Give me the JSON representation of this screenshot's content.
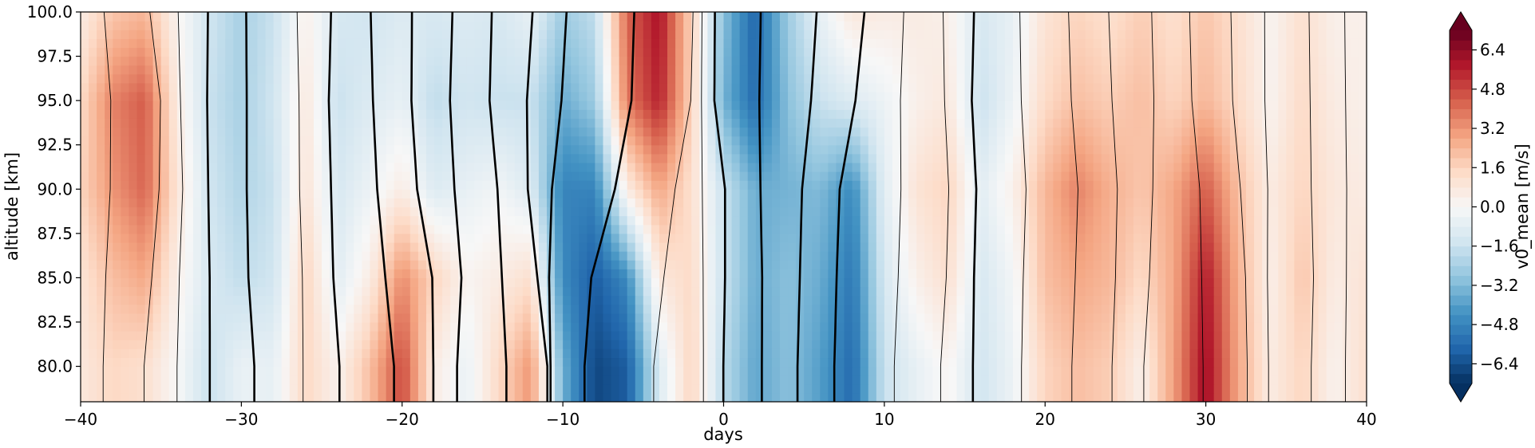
{
  "chart_data": {
    "type": "heatmap",
    "plot_kind": "filled contour with overlaid line contours",
    "xlabel": "days",
    "ylabel": "altitude [km]",
    "xlim": [
      -40,
      40
    ],
    "ylim": [
      78,
      100
    ],
    "x_ticks": [
      -40,
      -30,
      -20,
      -10,
      0,
      10,
      20,
      30,
      40
    ],
    "x_tick_labels": [
      "−40",
      "−30",
      "−20",
      "−10",
      "0",
      "10",
      "20",
      "30",
      "40"
    ],
    "y_ticks": [
      80.0,
      82.5,
      85.0,
      87.5,
      90.0,
      92.5,
      95.0,
      97.5,
      100.0
    ],
    "y_tick_labels": [
      "80.0",
      "82.5",
      "85.0",
      "87.5",
      "90.0",
      "92.5",
      "95.0",
      "97.5",
      "100.0"
    ],
    "colormap": "RdBu_r",
    "colorbar": {
      "label": "v0_mean [m/s]",
      "range": [
        -7.2,
        7.2
      ],
      "extend": "both",
      "ticks": [
        -6.4,
        -4.8,
        -3.2,
        -1.6,
        0.0,
        1.6,
        3.2,
        4.8,
        6.4
      ],
      "tick_labels": [
        "−6.4",
        "−4.8",
        "−3.2",
        "−1.6",
        "0.0",
        "1.6",
        "3.2",
        "4.8",
        "6.4"
      ],
      "color_stops": [
        "#053061",
        "#2166ac",
        "#4393c3",
        "#92c5de",
        "#d1e5f0",
        "#f7f7f7",
        "#fddbc7",
        "#f4a582",
        "#d6604d",
        "#b2182b",
        "#67001f"
      ]
    },
    "days": [
      -40,
      -38,
      -36,
      -34,
      -32,
      -30,
      -28,
      -26,
      -24,
      -22,
      -20,
      -18,
      -16,
      -14,
      -12,
      -10,
      -8,
      -6,
      -4,
      -2,
      0,
      2,
      4,
      6,
      8,
      10,
      12,
      14,
      16,
      18,
      20,
      22,
      24,
      26,
      28,
      30,
      32,
      34,
      36,
      38,
      40
    ],
    "v0_mean_profile_bands": [
      {
        "altitude_km": 80,
        "values": [
          0.8,
          1.5,
          1.2,
          0.0,
          -1.6,
          -0.5,
          -0.6,
          1.5,
          0.3,
          2.2,
          4.8,
          0.6,
          -0.5,
          1.4,
          3.2,
          -3.5,
          -6.6,
          -6.0,
          -1.0,
          1.6,
          -2.0,
          -3.8,
          -3.0,
          -4.0,
          -5.6,
          -1.6,
          -0.6,
          0.2,
          -1.4,
          -0.4,
          1.6,
          2.2,
          1.8,
          0.4,
          3.0,
          6.2,
          2.8,
          0.6,
          1.6,
          0.3,
          1.2
        ]
      },
      {
        "altitude_km": 85,
        "values": [
          1.0,
          2.2,
          2.8,
          0.4,
          -1.2,
          -1.8,
          -1.4,
          1.6,
          -0.8,
          0.6,
          3.4,
          1.6,
          0.2,
          0.6,
          1.2,
          -4.6,
          -6.0,
          -4.6,
          0.8,
          1.4,
          -1.6,
          -3.6,
          -3.0,
          -3.6,
          -5.2,
          -1.2,
          0.4,
          1.2,
          -1.2,
          -0.2,
          2.2,
          2.8,
          2.4,
          1.4,
          2.8,
          5.8,
          2.6,
          0.4,
          2.0,
          0.6,
          1.0
        ]
      },
      {
        "altitude_km": 90,
        "values": [
          1.6,
          3.2,
          4.2,
          1.0,
          -1.4,
          -2.2,
          -1.6,
          1.0,
          -1.2,
          -0.4,
          0.6,
          -1.0,
          -0.6,
          -0.2,
          -1.0,
          -4.8,
          -4.8,
          0.6,
          2.8,
          1.2,
          -1.6,
          -3.6,
          -3.4,
          -3.2,
          -4.6,
          -0.8,
          1.0,
          1.6,
          -0.8,
          0.4,
          2.4,
          3.6,
          2.6,
          2.0,
          2.8,
          4.4,
          2.2,
          0.6,
          1.6,
          0.8,
          0.6
        ]
      },
      {
        "altitude_km": 95,
        "values": [
          1.4,
          3.6,
          4.4,
          0.6,
          -1.6,
          -2.4,
          -1.4,
          0.8,
          -1.6,
          -1.0,
          -0.6,
          -1.8,
          -1.4,
          -1.6,
          -1.6,
          -3.6,
          -2.6,
          3.8,
          5.6,
          1.6,
          -3.4,
          -5.6,
          -3.0,
          -1.6,
          -1.0,
          -0.4,
          0.4,
          0.8,
          -1.6,
          -0.4,
          1.4,
          2.2,
          1.8,
          2.2,
          1.6,
          2.4,
          1.4,
          0.2,
          1.4,
          0.6,
          0.4
        ]
      },
      {
        "altitude_km": 100,
        "values": [
          0.6,
          2.0,
          2.4,
          0.2,
          -1.4,
          -2.4,
          -1.6,
          0.4,
          -1.2,
          -1.4,
          -1.0,
          -1.2,
          -1.0,
          -1.2,
          -0.6,
          -2.6,
          -1.8,
          4.2,
          6.0,
          1.6,
          -3.0,
          -5.8,
          -2.6,
          -0.6,
          0.8,
          0.6,
          0.6,
          0.4,
          -1.2,
          -0.6,
          1.0,
          1.6,
          1.2,
          1.8,
          1.2,
          2.0,
          1.2,
          0.2,
          1.2,
          0.4,
          0.4
        ]
      }
    ],
    "overlay_contours": "black line contours of a second field; bold lines on the negative side, thin lines on the positive side"
  }
}
